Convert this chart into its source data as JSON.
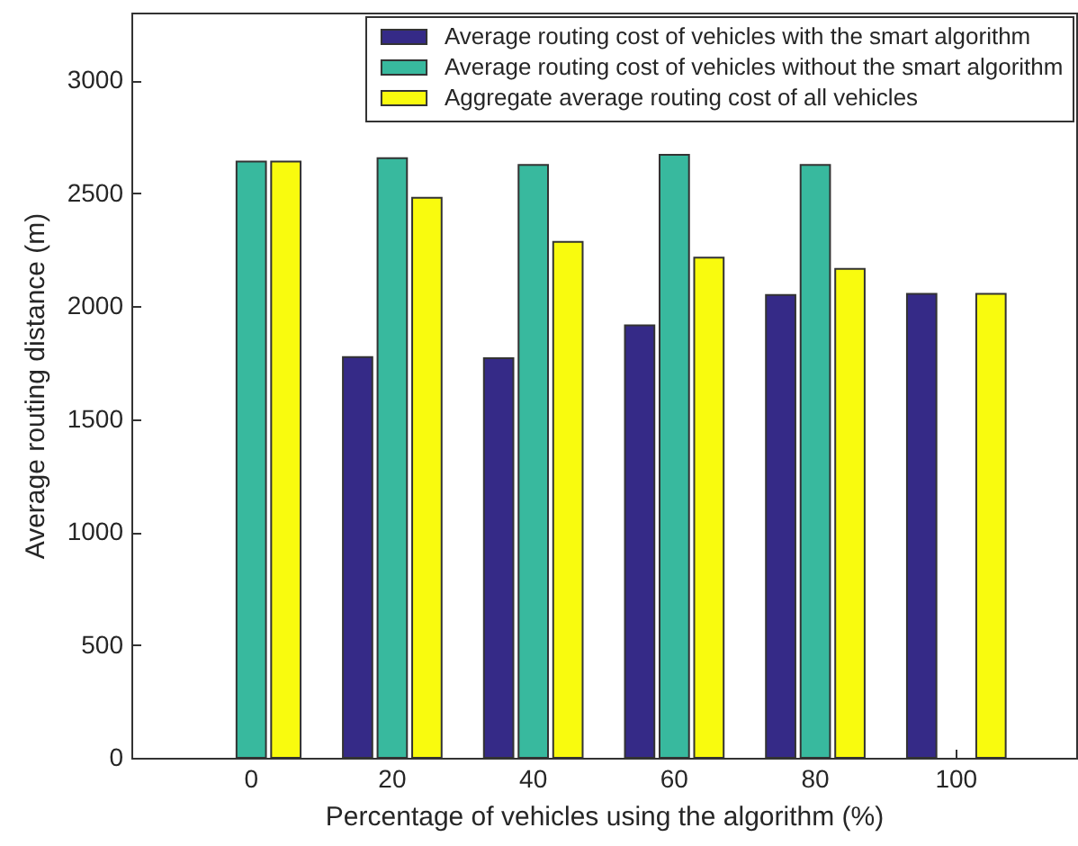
{
  "chart_data": {
    "type": "bar",
    "xlabel": "Percentage of vehicles using the algorithm (%)",
    "ylabel": "Average routing distance (m)",
    "categories": [
      "0",
      "20",
      "40",
      "60",
      "80",
      "100"
    ],
    "series": [
      {
        "name": "Average routing cost of vehicles with the smart algorithm",
        "color": "#352a87",
        "values": [
          null,
          1775,
          1770,
          1915,
          2050,
          2055
        ]
      },
      {
        "name": "Average routing cost of vehicles without the smart algorithm",
        "color": "#38b99e",
        "values": [
          2640,
          2655,
          2625,
          2670,
          2625,
          null
        ]
      },
      {
        "name": "Aggregate average routing cost of all vehicles",
        "color": "#f9fb0e",
        "values": [
          2640,
          2480,
          2285,
          2215,
          2165,
          2055
        ]
      }
    ],
    "ylim": [
      0,
      3300
    ],
    "yticks": [
      0,
      500,
      1000,
      1500,
      2000,
      2500,
      3000
    ],
    "grid": false,
    "legend": "top right"
  }
}
